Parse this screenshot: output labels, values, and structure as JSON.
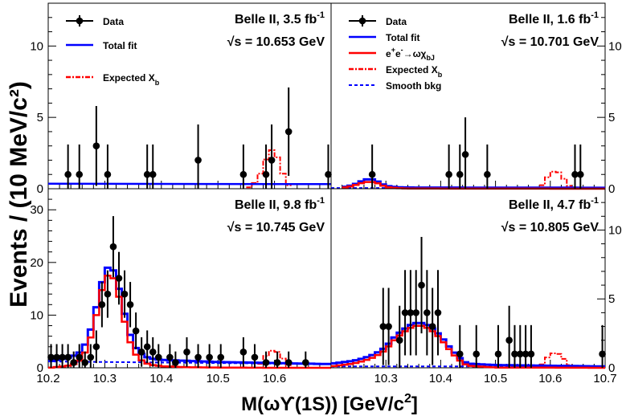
{
  "figure": {
    "ylabel": "Events / (10 MeV/c²)",
    "xlabel_parts": {
      "m": "M(",
      "omega": "ω",
      "ups": "ϒ",
      "rest": "(1S)) [GeV/c",
      "sup": "2",
      "end": "]"
    }
  },
  "colors": {
    "data": "#000000",
    "total_fit": "#0000ff",
    "signal": "#ff0000",
    "expected": "#ff0000",
    "smooth": "#0000ff"
  },
  "chart_data": [
    {
      "type": "histogram",
      "id": "p1",
      "label_line1": {
        "text": "Belle II, 3.5 fb",
        "sup": "-1"
      },
      "label_line2": {
        "root": "√",
        "text": "s = 10.653 GeV"
      },
      "legend": [
        {
          "kind": "data",
          "label": "Data"
        },
        {
          "kind": "total",
          "label": "Total fit"
        },
        {
          "kind": "expected",
          "label": "Expected X",
          "sub": "b"
        }
      ],
      "xlim": [
        10.2,
        10.7
      ],
      "ylim": [
        0,
        13
      ],
      "yticks": [
        0,
        5,
        10
      ],
      "ytick_side": "left",
      "xticks_shown": false,
      "data_points": [
        [
          10.235,
          1,
          2.1
        ],
        [
          10.255,
          1,
          2.1
        ],
        [
          10.285,
          3,
          2.8
        ],
        [
          10.305,
          1,
          2.1
        ],
        [
          10.375,
          1,
          2.1
        ],
        [
          10.385,
          1,
          2.1
        ],
        [
          10.465,
          2,
          2.5
        ],
        [
          10.545,
          1,
          2.1
        ],
        [
          10.585,
          1,
          2.1
        ],
        [
          10.595,
          2,
          2.5
        ],
        [
          10.625,
          4,
          3.1
        ],
        [
          10.695,
          1,
          2.1
        ]
      ],
      "total_fit": {
        "type": "flat",
        "x": [
          10.2,
          10.7
        ],
        "y": [
          0.35,
          0.32
        ]
      },
      "expected": {
        "x": [
          10.55,
          10.56,
          10.57,
          10.58,
          10.59,
          10.6,
          10.61,
          10.62,
          10.63
        ],
        "y": [
          0,
          0.2,
          0.6,
          1.5,
          2.6,
          2.8,
          1.6,
          0.5,
          0
        ]
      }
    },
    {
      "type": "histogram",
      "id": "p2",
      "label_line1": {
        "text": "Belle II, 1.6 fb",
        "sup": "-1"
      },
      "label_line2": {
        "root": "√",
        "text": "s = 10.701 GeV"
      },
      "legend": [
        {
          "kind": "data",
          "label": "Data"
        },
        {
          "kind": "total",
          "label": "Total fit"
        },
        {
          "kind": "signal",
          "label": "e",
          "sup1": "+",
          "mid": "e",
          "sup2": "-",
          "tail": "→ωχ",
          "sub": "bJ"
        },
        {
          "kind": "expected",
          "label": "Expected X",
          "sub": "b"
        },
        {
          "kind": "smooth",
          "label": "Smooth bkg"
        }
      ],
      "xlim": [
        10.2,
        10.7
      ],
      "ylim": [
        0,
        13
      ],
      "yticks": [
        0,
        5,
        10
      ],
      "ytick_side": "right",
      "xticks_shown": false,
      "data_points": [
        [
          10.275,
          1,
          2.1
        ],
        [
          10.415,
          1,
          2.1
        ],
        [
          10.435,
          1,
          2.1
        ],
        [
          10.445,
          2.4,
          2.6
        ],
        [
          10.485,
          1,
          2.1
        ],
        [
          10.645,
          1,
          2.1
        ],
        [
          10.655,
          1,
          2.1
        ]
      ],
      "total_fit": {
        "x": [
          10.22,
          10.24,
          10.26,
          10.27,
          10.28,
          10.29,
          10.3,
          10.32,
          10.35,
          10.4,
          10.5,
          10.6,
          10.7
        ],
        "y": [
          0.1,
          0.25,
          0.6,
          0.7,
          0.6,
          0.4,
          0.2,
          0.1,
          0.08,
          0.08,
          0.07,
          0.07,
          0.06
        ]
      },
      "signal": {
        "x": [
          10.22,
          10.24,
          10.26,
          10.27,
          10.28,
          10.29,
          10.3,
          10.32,
          10.35,
          10.7
        ],
        "y": [
          0.05,
          0.2,
          0.45,
          0.5,
          0.45,
          0.3,
          0.12,
          0.04,
          0.01,
          0.0
        ]
      },
      "expected": {
        "x": [
          10.58,
          10.59,
          10.6,
          10.61,
          10.62,
          10.63,
          10.64
        ],
        "y": [
          0,
          0.5,
          1.1,
          1.3,
          1.0,
          0.4,
          0
        ]
      },
      "smooth": {
        "x": [
          10.2,
          10.7
        ],
        "y": [
          0.05,
          0.05
        ]
      }
    },
    {
      "type": "histogram",
      "id": "p3",
      "label_line1": {
        "text": "Belle II, 9.8 fb",
        "sup": "-1"
      },
      "label_line2": {
        "root": "√",
        "text": "s = 10.745 GeV"
      },
      "legend": [],
      "xlim": [
        10.2,
        10.7
      ],
      "ylim": [
        0,
        34
      ],
      "yticks": [
        0,
        10,
        20,
        30
      ],
      "ytick_side": "left",
      "xticks_shown": true,
      "xticks": [
        10.2,
        10.3,
        10.4,
        10.5,
        10.6
      ],
      "data_points": [
        [
          10.205,
          2,
          2.5
        ],
        [
          10.215,
          2,
          2.5
        ],
        [
          10.225,
          2,
          2.5
        ],
        [
          10.235,
          2,
          2.5
        ],
        [
          10.245,
          1,
          2.1
        ],
        [
          10.255,
          2,
          2.5
        ],
        [
          10.265,
          1,
          2.1
        ],
        [
          10.275,
          2,
          2.5
        ],
        [
          10.285,
          4,
          3.1
        ],
        [
          10.295,
          12,
          4.3
        ],
        [
          10.305,
          14,
          4.5
        ],
        [
          10.315,
          23,
          5.8
        ],
        [
          10.325,
          17,
          5.0
        ],
        [
          10.335,
          14,
          4.5
        ],
        [
          10.345,
          12,
          4.3
        ],
        [
          10.355,
          7,
          3.5
        ],
        [
          10.365,
          3,
          2.8
        ],
        [
          10.375,
          4,
          3.1
        ],
        [
          10.385,
          3,
          2.8
        ],
        [
          10.395,
          2,
          2.5
        ],
        [
          10.415,
          2,
          2.5
        ],
        [
          10.425,
          1,
          2.1
        ],
        [
          10.445,
          3,
          2.8
        ],
        [
          10.465,
          2,
          2.5
        ],
        [
          10.485,
          2,
          2.5
        ],
        [
          10.505,
          2,
          2.5
        ],
        [
          10.545,
          3,
          2.8
        ],
        [
          10.565,
          2,
          2.5
        ],
        [
          10.585,
          1,
          2.1
        ],
        [
          10.605,
          1,
          2.1
        ],
        [
          10.625,
          1,
          2.1
        ],
        [
          10.655,
          1,
          2.1
        ]
      ],
      "total_fit": {
        "x": [
          10.2,
          10.21,
          10.22,
          10.23,
          10.24,
          10.25,
          10.26,
          10.27,
          10.28,
          10.29,
          10.3,
          10.31,
          10.32,
          10.33,
          10.34,
          10.35,
          10.36,
          10.37,
          10.38,
          10.4,
          10.45,
          10.5,
          10.55,
          10.6,
          10.65,
          10.7
        ],
        "y": [
          1.2,
          1.4,
          1.6,
          1.8,
          2.1,
          2.5,
          3.3,
          5.5,
          9.0,
          14.0,
          18.5,
          19.5,
          17.5,
          12.5,
          8.0,
          4.5,
          3.0,
          2.2,
          1.8,
          1.5,
          1.3,
          1.1,
          1.0,
          0.9,
          0.8,
          0.7
        ]
      },
      "signal": {
        "x": [
          10.2,
          10.21,
          10.22,
          10.23,
          10.24,
          10.25,
          10.26,
          10.27,
          10.28,
          10.29,
          10.3,
          10.31,
          10.32,
          10.33,
          10.34,
          10.35,
          10.36,
          10.37,
          10.38,
          10.4,
          10.45,
          10.5,
          10.55,
          10.6,
          10.65,
          10.7
        ],
        "y": [
          0,
          0.1,
          0.2,
          0.3,
          0.5,
          0.9,
          1.8,
          4.0,
          7.5,
          12.5,
          17.0,
          18.0,
          16.0,
          11.0,
          6.5,
          3.2,
          1.8,
          1.0,
          0.6,
          0.3,
          0.1,
          0.05,
          0.02,
          0,
          0,
          0
        ]
      },
      "expected": {
        "x": [
          10.57,
          10.58,
          10.59,
          10.6,
          10.61,
          10.62,
          10.63
        ],
        "y": [
          0,
          1.5,
          3.0,
          3.5,
          2.5,
          1.0,
          0
        ]
      },
      "smooth": {
        "x": [
          10.2,
          10.7
        ],
        "y": [
          1.2,
          0.7
        ]
      }
    },
    {
      "type": "histogram",
      "id": "p4",
      "label_line1": {
        "text": "Belle II, 4.7 fb",
        "sup": "-1"
      },
      "label_line2": {
        "root": "√",
        "text": "s = 10.805 GeV"
      },
      "legend": [],
      "xlim": [
        10.2,
        10.7
      ],
      "ylim": [
        0,
        13
      ],
      "yticks": [
        0,
        5,
        10
      ],
      "ytick_side": "right",
      "xticks_shown": true,
      "xticks": [
        10.3,
        10.4,
        10.5,
        10.6,
        10.7
      ],
      "data_points": [
        [
          10.295,
          3,
          2.8
        ],
        [
          10.305,
          3,
          2.8
        ],
        [
          10.325,
          2,
          2.5
        ],
        [
          10.335,
          4,
          3.1
        ],
        [
          10.345,
          4,
          3.1
        ],
        [
          10.355,
          4,
          3.1
        ],
        [
          10.365,
          6,
          3.5
        ],
        [
          10.375,
          4,
          3.1
        ],
        [
          10.385,
          3,
          2.8
        ],
        [
          10.395,
          4,
          3.1
        ],
        [
          10.435,
          1,
          2.1
        ],
        [
          10.465,
          1,
          2.1
        ],
        [
          10.505,
          1,
          2.1
        ],
        [
          10.525,
          2,
          2.5
        ],
        [
          10.535,
          1,
          2.1
        ],
        [
          10.545,
          1,
          2.1
        ],
        [
          10.555,
          1,
          2.1
        ],
        [
          10.565,
          1,
          2.1
        ],
        [
          10.695,
          1,
          2.1
        ]
      ],
      "total_fit": {
        "x": [
          10.2,
          10.22,
          10.24,
          10.26,
          10.28,
          10.3,
          10.31,
          10.32,
          10.33,
          10.34,
          10.35,
          10.36,
          10.37,
          10.38,
          10.39,
          10.4,
          10.41,
          10.42,
          10.43,
          10.44,
          10.45,
          10.5,
          10.6,
          10.7
        ],
        "y": [
          0.3,
          0.4,
          0.5,
          0.7,
          1.0,
          1.5,
          2.0,
          2.4,
          2.7,
          3.0,
          3.2,
          3.3,
          3.2,
          3.0,
          2.7,
          2.3,
          1.8,
          1.3,
          0.9,
          0.5,
          0.3,
          0.2,
          0.15,
          0.1
        ]
      },
      "signal": {
        "x": [
          10.2,
          10.22,
          10.24,
          10.26,
          10.28,
          10.3,
          10.31,
          10.32,
          10.33,
          10.34,
          10.35,
          10.36,
          10.37,
          10.38,
          10.39,
          10.4,
          10.41,
          10.42,
          10.43,
          10.44,
          10.45,
          10.5,
          10.7
        ],
        "y": [
          0.1,
          0.2,
          0.3,
          0.5,
          0.8,
          1.3,
          1.8,
          2.2,
          2.5,
          2.8,
          3.0,
          3.1,
          3.0,
          2.8,
          2.5,
          2.1,
          1.6,
          1.1,
          0.7,
          0.35,
          0.15,
          0.02,
          0
        ]
      },
      "expected": {
        "x": [
          10.58,
          10.59,
          10.6,
          10.61,
          10.62,
          10.63,
          10.64
        ],
        "y": [
          0,
          0.5,
          1.0,
          1.1,
          0.9,
          0.4,
          0
        ]
      },
      "smooth": {
        "x": [
          10.2,
          10.7
        ],
        "y": [
          0.1,
          0.1
        ]
      }
    }
  ]
}
